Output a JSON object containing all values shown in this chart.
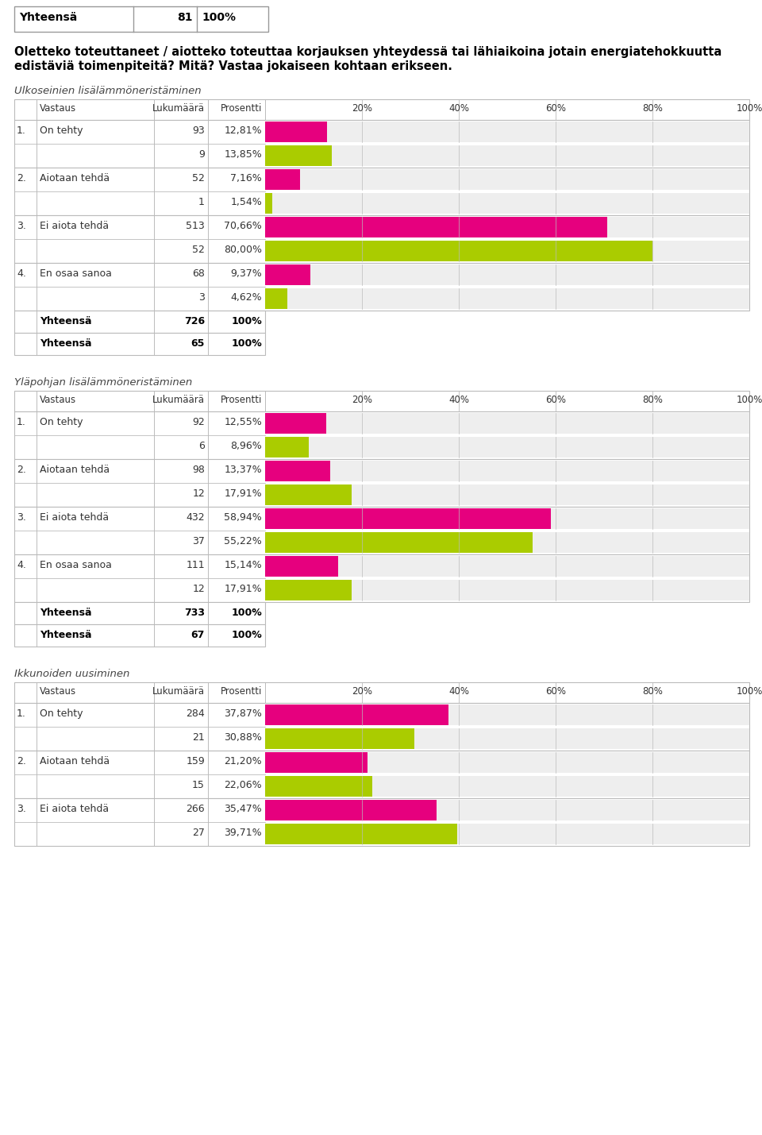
{
  "pink_color": "#E6007E",
  "green_color": "#AACC00",
  "bg_color": "#EEEEEE",
  "white_color": "#FFFFFF",
  "border_color": "#BBBBBB",
  "dark_border": "#999999",
  "top_table": {
    "label": "Yhteensä",
    "num": "81",
    "pct": "100%"
  },
  "question_line1": "Oletteko toteuttaneet / aiotteko toteuttaa korjauksen yhteydessä tai lähiaikoina jotain energiatehokkuutta",
  "question_line2": "edistäviä toimenpiteitä? Mitä? Vastaa jokaiseen kohtaan erikseen.",
  "sections": [
    {
      "title": "Ulkoseinien lisälämmöneristäminen",
      "rows": [
        {
          "num": "1.",
          "label": "On tehty",
          "n1": 93,
          "p1": "12,81%",
          "v1": 12.81,
          "n2": 9,
          "p2": "13,85%",
          "v2": 13.85
        },
        {
          "num": "2.",
          "label": "Aiotaan tehdä",
          "n1": 52,
          "p1": "7,16%",
          "v1": 7.16,
          "n2": 1,
          "p2": "1,54%",
          "v2": 1.54
        },
        {
          "num": "3.",
          "label": "Ei aiota tehdä",
          "n1": 513,
          "p1": "70,66%",
          "v1": 70.66,
          "n2": 52,
          "p2": "80,00%",
          "v2": 80.0
        },
        {
          "num": "4.",
          "label": "En osaa sanoa",
          "n1": 68,
          "p1": "9,37%",
          "v1": 9.37,
          "n2": 3,
          "p2": "4,62%",
          "v2": 4.62
        }
      ],
      "totals": [
        {
          "label": "Yhteensä",
          "num": "726",
          "pct": "100%"
        },
        {
          "label": "Yhteensä",
          "num": "65",
          "pct": "100%"
        }
      ]
    },
    {
      "title": "Yläpohjan lisälämmöneristäminen",
      "rows": [
        {
          "num": "1.",
          "label": "On tehty",
          "n1": 92,
          "p1": "12,55%",
          "v1": 12.55,
          "n2": 6,
          "p2": "8,96%",
          "v2": 8.96
        },
        {
          "num": "2.",
          "label": "Aiotaan tehdä",
          "n1": 98,
          "p1": "13,37%",
          "v1": 13.37,
          "n2": 12,
          "p2": "17,91%",
          "v2": 17.91
        },
        {
          "num": "3.",
          "label": "Ei aiota tehdä",
          "n1": 432,
          "p1": "58,94%",
          "v1": 58.94,
          "n2": 37,
          "p2": "55,22%",
          "v2": 55.22
        },
        {
          "num": "4.",
          "label": "En osaa sanoa",
          "n1": 111,
          "p1": "15,14%",
          "v1": 15.14,
          "n2": 12,
          "p2": "17,91%",
          "v2": 17.91
        }
      ],
      "totals": [
        {
          "label": "Yhteensä",
          "num": "733",
          "pct": "100%"
        },
        {
          "label": "Yhteensä",
          "num": "67",
          "pct": "100%"
        }
      ]
    },
    {
      "title": "Ikkunoiden uusiminen",
      "rows": [
        {
          "num": "1.",
          "label": "On tehty",
          "n1": 284,
          "p1": "37,87%",
          "v1": 37.87,
          "n2": 21,
          "p2": "30,88%",
          "v2": 30.88
        },
        {
          "num": "2.",
          "label": "Aiotaan tehdä",
          "n1": 159,
          "p1": "21,20%",
          "v1": 21.2,
          "n2": 15,
          "p2": "22,06%",
          "v2": 22.06
        },
        {
          "num": "3.",
          "label": "Ei aiota tehdä",
          "n1": 266,
          "p1": "35,47%",
          "v1": 35.47,
          "n2": 27,
          "p2": "39,71%",
          "v2": 39.71
        }
      ],
      "totals": []
    }
  ]
}
